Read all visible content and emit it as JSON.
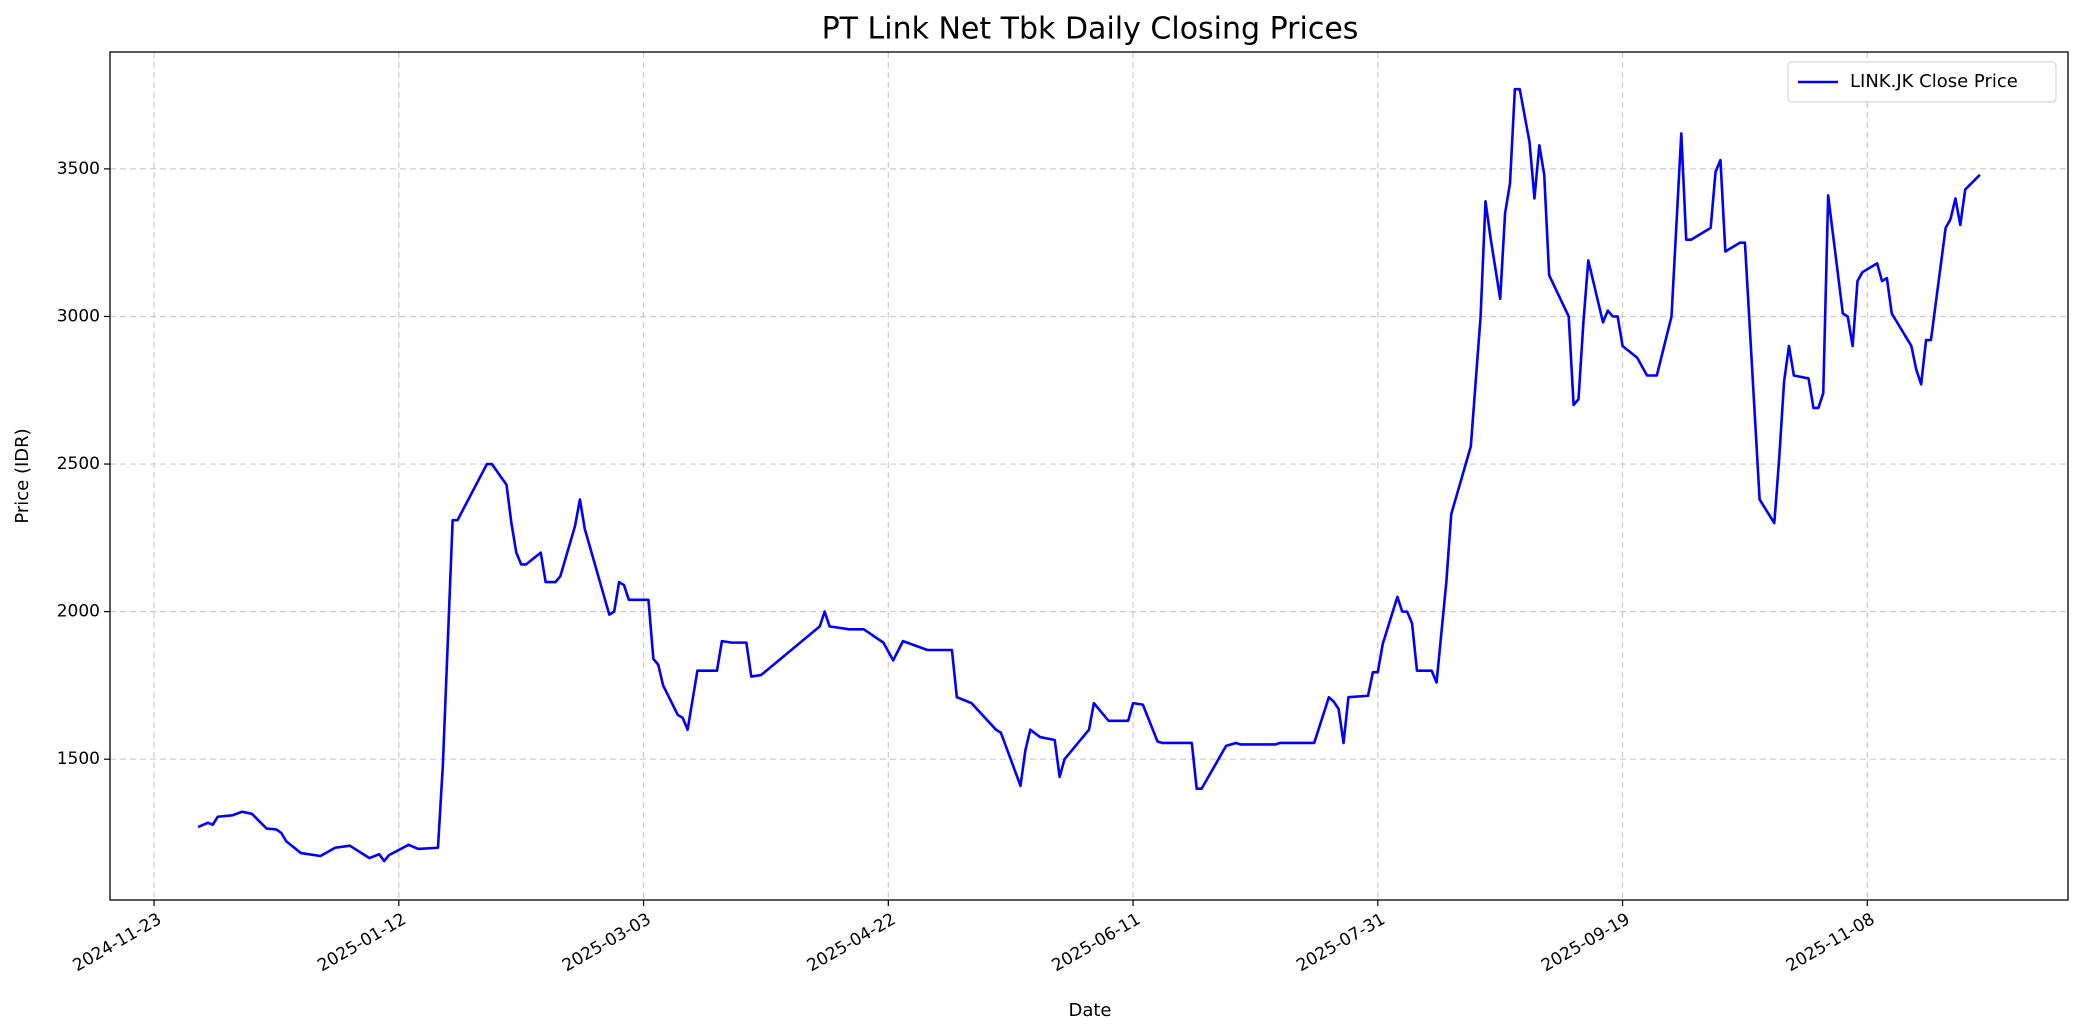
{
  "chart_data": {
    "type": "line",
    "title": "PT Link Net Tbk Daily Closing Prices",
    "x_label": "Date",
    "y_label": "Price (IDR)",
    "x": [
      "2024-12-02",
      "2024-12-04",
      "2024-12-05",
      "2024-12-06",
      "2024-12-09",
      "2024-12-11",
      "2024-12-13",
      "2024-12-16",
      "2024-12-18",
      "2024-12-19",
      "2024-12-20",
      "2024-12-23",
      "2024-12-27",
      "2024-12-30",
      "2025-01-02",
      "2025-01-06",
      "2025-01-08",
      "2025-01-09",
      "2025-01-10",
      "2025-01-14",
      "2025-01-16",
      "2025-01-20",
      "2025-01-21",
      "2025-01-23",
      "2025-01-24",
      "2025-01-30",
      "2025-01-31",
      "2025-02-03",
      "2025-02-04",
      "2025-02-05",
      "2025-02-06",
      "2025-02-07",
      "2025-02-10",
      "2025-02-11",
      "2025-02-13",
      "2025-02-14",
      "2025-02-17",
      "2025-02-18",
      "2025-02-19",
      "2025-02-24",
      "2025-02-25",
      "2025-02-26",
      "2025-02-27",
      "2025-02-28",
      "2025-03-04",
      "2025-03-05",
      "2025-03-06",
      "2025-03-07",
      "2025-03-10",
      "2025-03-11",
      "2025-03-12",
      "2025-03-14",
      "2025-03-18",
      "2025-03-19",
      "2025-03-21",
      "2025-03-24",
      "2025-03-25",
      "2025-03-27",
      "2025-04-08",
      "2025-04-09",
      "2025-04-10",
      "2025-04-14",
      "2025-04-17",
      "2025-04-21",
      "2025-04-23",
      "2025-04-25",
      "2025-04-30",
      "2025-05-05",
      "2025-05-06",
      "2025-05-09",
      "2025-05-14",
      "2025-05-15",
      "2025-05-19",
      "2025-05-20",
      "2025-05-21",
      "2025-05-23",
      "2025-05-26",
      "2025-05-27",
      "2025-05-28",
      "2025-06-02",
      "2025-06-03",
      "2025-06-04",
      "2025-06-06",
      "2025-06-10",
      "2025-06-11",
      "2025-06-13",
      "2025-06-16",
      "2025-06-17",
      "2025-06-23",
      "2025-06-24",
      "2025-06-25",
      "2025-06-30",
      "2025-07-02",
      "2025-07-03",
      "2025-07-10",
      "2025-07-11",
      "2025-07-18",
      "2025-07-21",
      "2025-07-22",
      "2025-07-23",
      "2025-07-24",
      "2025-07-25",
      "2025-07-29",
      "2025-07-30",
      "2025-07-31",
      "2025-08-01",
      "2025-08-04",
      "2025-08-05",
      "2025-08-06",
      "2025-08-07",
      "2025-08-08",
      "2025-08-11",
      "2025-08-12",
      "2025-08-14",
      "2025-08-15",
      "2025-08-19",
      "2025-08-21",
      "2025-08-22",
      "2025-08-23",
      "2025-08-25",
      "2025-08-26",
      "2025-08-27",
      "2025-08-28",
      "2025-08-29",
      "2025-08-31",
      "2025-09-01",
      "2025-09-02",
      "2025-09-03",
      "2025-09-04",
      "2025-09-08",
      "2025-09-09",
      "2025-09-10",
      "2025-09-11",
      "2025-09-12",
      "2025-09-15",
      "2025-09-16",
      "2025-09-17",
      "2025-09-18",
      "2025-09-19",
      "2025-09-22",
      "2025-09-24",
      "2025-09-26",
      "2025-09-29",
      "2025-10-01",
      "2025-10-02",
      "2025-10-03",
      "2025-10-07",
      "2025-10-08",
      "2025-10-09",
      "2025-10-10",
      "2025-10-13",
      "2025-10-14",
      "2025-10-17",
      "2025-10-20",
      "2025-10-21",
      "2025-10-22",
      "2025-10-23",
      "2025-10-24",
      "2025-10-27",
      "2025-10-28",
      "2025-10-29",
      "2025-10-30",
      "2025-10-31",
      "2025-11-03",
      "2025-11-04",
      "2025-11-05",
      "2025-11-06",
      "2025-11-07",
      "2025-11-10",
      "2025-11-11",
      "2025-11-12",
      "2025-11-13",
      "2025-11-17",
      "2025-11-18",
      "2025-11-19",
      "2025-11-20",
      "2025-11-21",
      "2025-11-24",
      "2025-11-25",
      "2025-11-26",
      "2025-11-27",
      "2025-11-28",
      "2025-12-01"
    ],
    "series": [
      {
        "name": "LINK.JK Close Price",
        "color": "#0000ff",
        "values": [
          1270,
          1285,
          1278,
          1305,
          1310,
          1322,
          1315,
          1265,
          1262,
          1250,
          1222,
          1182,
          1172,
          1200,
          1207,
          1165,
          1178,
          1155,
          1175,
          1210,
          1196,
          1200,
          1480,
          2310,
          2310,
          2500,
          2500,
          2430,
          2300,
          2200,
          2160,
          2160,
          2200,
          2100,
          2100,
          2120,
          2290,
          2380,
          2280,
          1990,
          2000,
          2100,
          2090,
          2040,
          2040,
          1840,
          1820,
          1750,
          1650,
          1640,
          1600,
          1800,
          1800,
          1900,
          1895,
          1895,
          1780,
          1785,
          1950,
          2000,
          1950,
          1940,
          1940,
          1895,
          1835,
          1900,
          1870,
          1870,
          1710,
          1690,
          1600,
          1590,
          1410,
          1530,
          1600,
          1575,
          1565,
          1440,
          1500,
          1600,
          1690,
          1670,
          1630,
          1630,
          1690,
          1685,
          1560,
          1555,
          1555,
          1400,
          1400,
          1545,
          1555,
          1550,
          1550,
          1555,
          1555,
          1710,
          1695,
          1670,
          1555,
          1710,
          1715,
          1795,
          1795,
          1890,
          2050,
          2000,
          2000,
          1960,
          1800,
          1800,
          1760,
          2100,
          2330,
          2560,
          3000,
          3390,
          3270,
          3060,
          3350,
          3450,
          3770,
          3770,
          3590,
          3400,
          3580,
          3480,
          3140,
          3000,
          2700,
          2720,
          2980,
          3190,
          2980,
          3020,
          3000,
          3000,
          2900,
          2860,
          2800,
          2800,
          3000,
          3620,
          3260,
          3260,
          3300,
          3490,
          3530,
          3220,
          3250,
          3250,
          2380,
          2300,
          2520,
          2780,
          2900,
          2800,
          2790,
          2690,
          2690,
          2740,
          3410,
          3010,
          3000,
          2900,
          3120,
          3150,
          3180,
          3120,
          3130,
          3010,
          2900,
          2820,
          2770,
          2920,
          2920,
          3300,
          3330,
          3400,
          3310,
          3430,
          3480
        ]
      }
    ],
    "xlim": [
      "2024-11-14",
      "2025-12-19"
    ],
    "xticks": [
      "2024-11-23",
      "2025-01-12",
      "2025-03-03",
      "2025-04-22",
      "2025-06-11",
      "2025-07-31",
      "2025-09-19",
      "2025-11-08"
    ],
    "ylim": [
      1023,
      3896
    ],
    "yticks": [
      1500,
      2000,
      2500,
      3000,
      3500
    ],
    "grid": true,
    "legend": "upper right"
  }
}
